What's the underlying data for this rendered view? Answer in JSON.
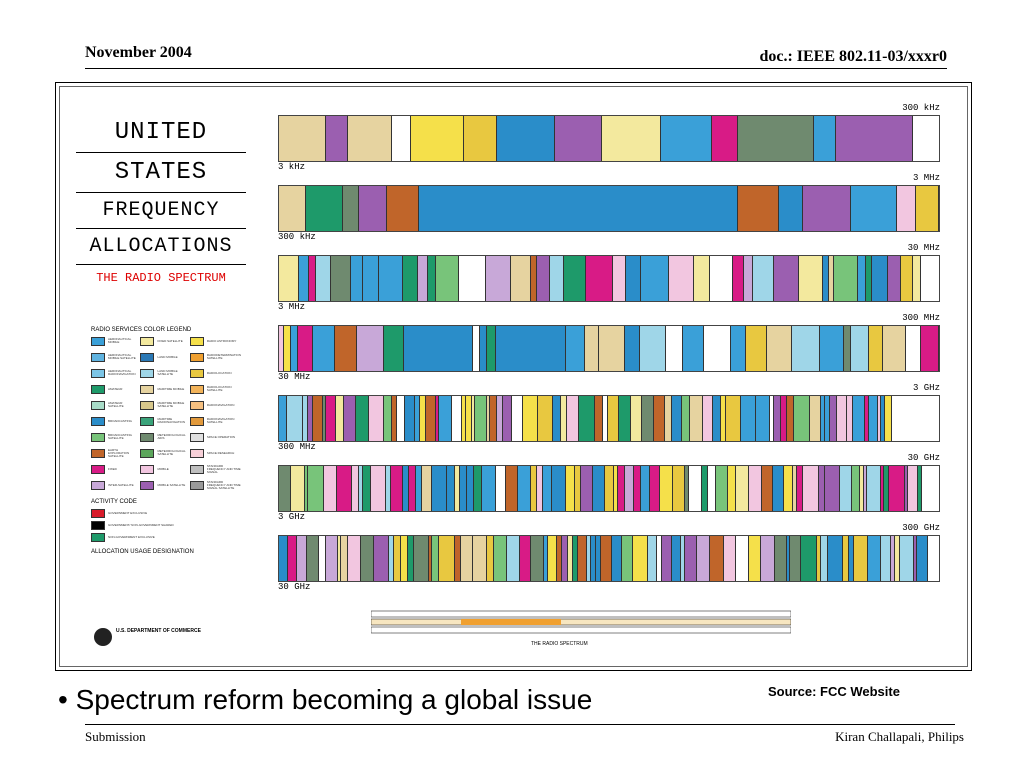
{
  "header": {
    "date": "November 2004",
    "doc": "doc.: IEEE 802.11-03/xxxr0"
  },
  "poster": {
    "title_lines": [
      "UNITED",
      "STATES",
      "FREQUENCY",
      "ALLOCATIONS"
    ],
    "subtitle": "THE RADIO SPECTRUM",
    "legend_title": "RADIO SERVICES COLOR LEGEND",
    "legend": [
      {
        "c": "#3aa0d8",
        "t": "AERONAUTICAL MOBILE"
      },
      {
        "c": "#f3e99e",
        "t": "FIXED SATELLITE"
      },
      {
        "c": "#f5e04a",
        "t": "RADIO ASTRONOMY"
      },
      {
        "c": "#5fb3e0",
        "t": "AERONAUTICAL MOBILE SATELLITE"
      },
      {
        "c": "#2a78b5",
        "t": "LAND MOBILE"
      },
      {
        "c": "#f0a030",
        "t": "RADIODETERMINATION SATELLITE"
      },
      {
        "c": "#7cc5e6",
        "t": "AERONAUTICAL RADIONAVIGATION"
      },
      {
        "c": "#9fd6e8",
        "t": "LAND MOBILE SATELLITE"
      },
      {
        "c": "#e8c840",
        "t": "RADIOLOCATION"
      },
      {
        "c": "#1e9a6a",
        "t": "AMATEUR"
      },
      {
        "c": "#e6d3a0",
        "t": "MARITIME MOBILE"
      },
      {
        "c": "#f2b35a",
        "t": "RADIOLOCATION SATELLITE"
      },
      {
        "c": "#a8dcc8",
        "t": "AMATEUR SATELLITE"
      },
      {
        "c": "#d8c88c",
        "t": "MARITIME MOBILE SATELLITE"
      },
      {
        "c": "#f6c080",
        "t": "RADIONAVIGATION"
      },
      {
        "c": "#2a8dc9",
        "t": "BROADCASTING"
      },
      {
        "c": "#3aa37a",
        "t": "MARITIME RADIONAVIGATION"
      },
      {
        "c": "#e29a3c",
        "t": "RADIONAVIGATION SATELLITE"
      },
      {
        "c": "#78c47a",
        "t": "BROADCASTING SATELLITE"
      },
      {
        "c": "#6f8a6f",
        "t": "METEOROLOGICAL AIDS"
      },
      {
        "c": "#e0e0e0",
        "t": "SPACE OPERATION"
      },
      {
        "c": "#c0652a",
        "t": "EARTH EXPLORATION SATELLITE"
      },
      {
        "c": "#5ca65c",
        "t": "METEOROLOGICAL SATELLITE"
      },
      {
        "c": "#f7d0d8",
        "t": "SPACE RESEARCH"
      },
      {
        "c": "#d81b86",
        "t": "FIXED"
      },
      {
        "c": "#f2c6e0",
        "t": "MOBILE"
      },
      {
        "c": "#bfbfbf",
        "t": "STANDARD FREQUENCY AND TIME SIGNAL"
      },
      {
        "c": "#c8a8d8",
        "t": "INTER-SATELLITE"
      },
      {
        "c": "#9b5fb0",
        "t": "MOBILE SATELLITE"
      },
      {
        "c": "#9a9a9a",
        "t": "STANDARD FREQUENCY AND TIME SIGNAL SATELLITE"
      }
    ],
    "activity_title": "ACTIVITY CODE",
    "activity": [
      {
        "c": "#d81b2a",
        "t": "GOVERNMENT EXCLUSIVE"
      },
      {
        "c": "#000000",
        "t": "GOVERNMENT/ NON-GOVERNMENT SHARED"
      },
      {
        "c": "#1e9a6a",
        "t": "NON-GOVERNMENT EXCLUSIVE"
      }
    ],
    "usage_title": "ALLOCATION USAGE DESIGNATION",
    "dept": "U.S. DEPARTMENT OF COMMERCE",
    "bands": [
      {
        "start": "3 kHz",
        "end": "300 kHz"
      },
      {
        "start": "300 kHz",
        "end": "3 MHz"
      },
      {
        "start": "3 MHz",
        "end": "30 MHz"
      },
      {
        "start": "30 MHz",
        "end": "300 MHz"
      },
      {
        "start": "300 MHz",
        "end": "3 GHz"
      },
      {
        "start": "3 GHz",
        "end": "30 GHz"
      },
      {
        "start": "30 GHz",
        "end": "300 GHz"
      }
    ],
    "scale_caption": "THE RADIO SPECTRUM"
  },
  "bullet": "• Spectrum reform becoming a global issue",
  "source": "Source: FCC Website",
  "footer": {
    "left": "Submission",
    "right": "Kiran Challapali, Philips"
  },
  "palette": [
    "#d81b86",
    "#2a8dc9",
    "#f3e99e",
    "#9b5fb0",
    "#1e9a6a",
    "#c0652a",
    "#f5e04a",
    "#3aa0d8",
    "#e6d3a0",
    "#f2c6e0",
    "#9fd6e8",
    "#c8a8d8",
    "#e8c840",
    "#78c47a",
    "#ffffff",
    "#6f8a6f"
  ]
}
